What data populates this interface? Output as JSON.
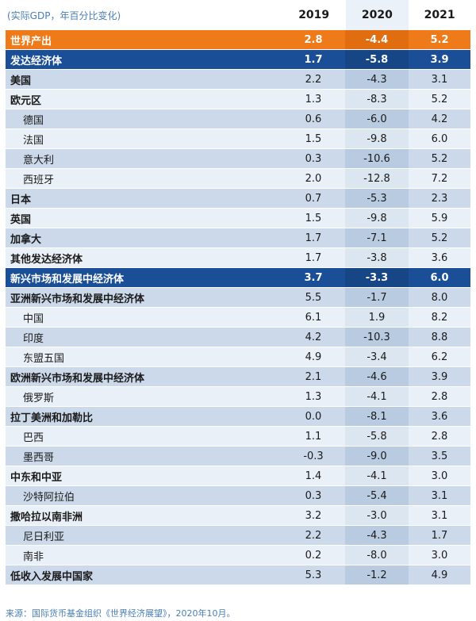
{
  "header": {
    "unit": "(实际GDP，年百分比变化)",
    "years": [
      "2019",
      "2020",
      "2021"
    ]
  },
  "rows": [
    {
      "name": "世界产出",
      "v2019": "2.8",
      "v2020": "-4.4",
      "v2021": "5.2",
      "style": "orange",
      "indent": false
    },
    {
      "name": "发达经济体",
      "v2019": "1.7",
      "v2020": "-5.8",
      "v2021": "3.9",
      "style": "blue",
      "indent": false
    },
    {
      "name": "美国",
      "v2019": "2.2",
      "v2020": "-4.3",
      "v2021": "3.1",
      "style": "lt",
      "indent": false
    },
    {
      "name": "欧元区",
      "v2019": "1.3",
      "v2020": "-8.3",
      "v2021": "5.2",
      "style": "wt",
      "indent": false
    },
    {
      "name": "德国",
      "v2019": "0.6",
      "v2020": "-6.0",
      "v2021": "4.2",
      "style": "lt",
      "indent": true
    },
    {
      "name": "法国",
      "v2019": "1.5",
      "v2020": "-9.8",
      "v2021": "6.0",
      "style": "wt",
      "indent": true
    },
    {
      "name": "意大利",
      "v2019": "0.3",
      "v2020": "-10.6",
      "v2021": "5.2",
      "style": "lt",
      "indent": true
    },
    {
      "name": "西班牙",
      "v2019": "2.0",
      "v2020": "-12.8",
      "v2021": "7.2",
      "style": "wt",
      "indent": true
    },
    {
      "name": "日本",
      "v2019": "0.7",
      "v2020": "-5.3",
      "v2021": "2.3",
      "style": "lt",
      "indent": false
    },
    {
      "name": "英国",
      "v2019": "1.5",
      "v2020": "-9.8",
      "v2021": "5.9",
      "style": "wt",
      "indent": false
    },
    {
      "name": "加拿大",
      "v2019": "1.7",
      "v2020": "-7.1",
      "v2021": "5.2",
      "style": "lt",
      "indent": false
    },
    {
      "name": "其他发达经济体",
      "v2019": "1.7",
      "v2020": "-3.8",
      "v2021": "3.6",
      "style": "wt",
      "indent": false
    },
    {
      "name": "新兴市场和发展中经济体",
      "v2019": "3.7",
      "v2020": "-3.3",
      "v2021": "6.0",
      "style": "blue",
      "indent": false
    },
    {
      "name": "亚洲新兴市场和发展中经济体",
      "v2019": "5.5",
      "v2020": "-1.7",
      "v2021": "8.0",
      "style": "lt",
      "indent": false
    },
    {
      "name": "中国",
      "v2019": "6.1",
      "v2020": "1.9",
      "v2021": "8.2",
      "style": "wt",
      "indent": true
    },
    {
      "name": "印度",
      "v2019": "4.2",
      "v2020": "-10.3",
      "v2021": "8.8",
      "style": "lt",
      "indent": true
    },
    {
      "name": "东盟五国",
      "v2019": "4.9",
      "v2020": "-3.4",
      "v2021": "6.2",
      "style": "wt",
      "indent": true
    },
    {
      "name": "欧洲新兴市场和发展中经济体",
      "v2019": "2.1",
      "v2020": "-4.6",
      "v2021": "3.9",
      "style": "lt",
      "indent": false
    },
    {
      "name": "俄罗斯",
      "v2019": "1.3",
      "v2020": "-4.1",
      "v2021": "2.8",
      "style": "wt",
      "indent": true
    },
    {
      "name": "拉丁美洲和加勒比",
      "v2019": "0.0",
      "v2020": "-8.1",
      "v2021": "3.6",
      "style": "lt",
      "indent": false
    },
    {
      "name": "巴西",
      "v2019": "1.1",
      "v2020": "-5.8",
      "v2021": "2.8",
      "style": "wt",
      "indent": true
    },
    {
      "name": "墨西哥",
      "v2019": "-0.3",
      "v2020": "-9.0",
      "v2021": "3.5",
      "style": "lt",
      "indent": true
    },
    {
      "name": "中东和中亚",
      "v2019": "1.4",
      "v2020": "-4.1",
      "v2021": "3.0",
      "style": "wt",
      "indent": false
    },
    {
      "name": "沙特阿拉伯",
      "v2019": "0.3",
      "v2020": "-5.4",
      "v2021": "3.1",
      "style": "lt",
      "indent": true
    },
    {
      "name": "撒哈拉以南非洲",
      "v2019": "3.2",
      "v2020": "-3.0",
      "v2021": "3.1",
      "style": "wt",
      "indent": false
    },
    {
      "name": "尼日利亚",
      "v2019": "2.2",
      "v2020": "-4.3",
      "v2021": "1.7",
      "style": "lt",
      "indent": true
    },
    {
      "name": "南非",
      "v2019": "0.2",
      "v2020": "-8.0",
      "v2021": "3.0",
      "style": "wt",
      "indent": true
    },
    {
      "name": "低收入发展中国家",
      "v2019": "5.3",
      "v2020": "-1.2",
      "v2021": "4.9",
      "style": "lt",
      "indent": false
    }
  ],
  "source": "来源：国际货币基金组织《世界经济展望》，2020年10月。"
}
